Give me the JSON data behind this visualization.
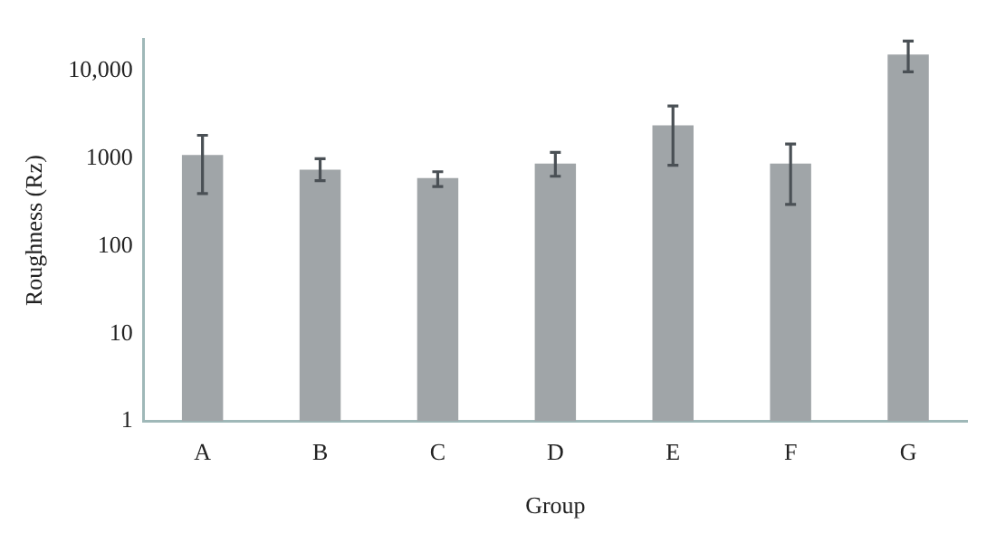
{
  "chart_data": {
    "type": "bar",
    "xlabel": "Group",
    "ylabel": "Roughness (Rz)",
    "categories": [
      "A",
      "B",
      "C",
      "D",
      "E",
      "F",
      "G"
    ],
    "values": [
      1100,
      750,
      600,
      880,
      2400,
      880,
      15500
    ],
    "errors": [
      [
        400,
        1850
      ],
      [
        560,
        1000
      ],
      [
        480,
        710
      ],
      [
        630,
        1180
      ],
      [
        840,
        4000
      ],
      [
        300,
        1470
      ],
      [
        9800,
        22000
      ]
    ],
    "color": "#a0a5a8",
    "log": "y",
    "ylim": [
      1,
      23000
    ],
    "yticks": [
      1,
      10,
      100,
      {
        "value": 1000,
        "label": "1000"
      },
      {
        "value": 10000,
        "label": "10,000"
      }
    ],
    "grid": false,
    "legend": false
  }
}
